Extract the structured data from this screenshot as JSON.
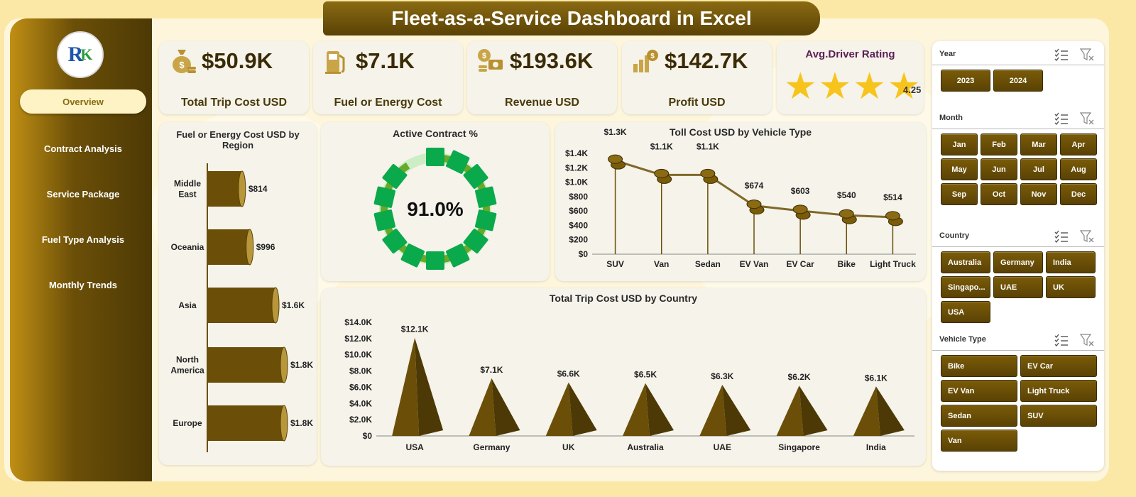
{
  "title": "Fleet-as-a-Service Dashboard in Excel",
  "logo": {
    "letter": "R",
    "accent": "K"
  },
  "nav": [
    "Overview",
    "Contract Analysis",
    "Service Package",
    "Fuel  Type Analysis",
    "Monthly Trends"
  ],
  "kpis": [
    {
      "value": "$50.9K",
      "label": "Total Trip Cost USD",
      "icon": "money-bag-icon"
    },
    {
      "value": "$7.1K",
      "label": "Fuel or Energy Cost",
      "icon": "fuel-pump-icon"
    },
    {
      "value": "$193.6K",
      "label": "Revenue USD",
      "icon": "revenue-icon"
    },
    {
      "value": "$142.7K",
      "label": "Profit USD",
      "icon": "profit-icon"
    }
  ],
  "rating": {
    "title": "Avg.Driver Rating",
    "value": "4.25",
    "stars": 4.25,
    "max": 5,
    "color": "#f7c41c"
  },
  "colors": {
    "accent": "#6b4f08",
    "gold": "#c08f14",
    "green": "#0aa94b",
    "light_green": "#cbeec4"
  },
  "chart_data": [
    {
      "type": "bar",
      "title": "Fuel or Energy Cost USD by Region",
      "orientation": "horizontal",
      "categories": [
        "Middle East",
        "Oceania",
        "Asia",
        "North America",
        "Europe"
      ],
      "values": [
        814,
        996,
        1600,
        1800,
        1800
      ],
      "labels": [
        "$814",
        "$996",
        "$1.6K",
        "$1.8K",
        "$1.8K"
      ]
    },
    {
      "type": "pie",
      "title": "Active Contract %",
      "values": [
        91.0,
        9.0
      ],
      "label": "91.0%"
    },
    {
      "type": "line",
      "title": "Toll Cost USD by Vehicle Type",
      "categories": [
        "SUV",
        "Van",
        "Sedan",
        "EV Van",
        "EV Car",
        "Bike",
        "Light Truck"
      ],
      "values": [
        1300,
        1100,
        1100,
        674,
        603,
        540,
        514
      ],
      "labels": [
        "$1.3K",
        "$1.1K",
        "$1.1K",
        "$674",
        "$603",
        "$540",
        "$514"
      ],
      "ylim": [
        0,
        1400
      ],
      "yticks": [
        "$0",
        "$200",
        "$400",
        "$600",
        "$800",
        "$1.0K",
        "$1.2K",
        "$1.4K"
      ]
    },
    {
      "type": "bar",
      "title": "Total Trip Cost USD by Country",
      "categories": [
        "USA",
        "Germany",
        "UK",
        "Australia",
        "UAE",
        "Singapore",
        "India"
      ],
      "values": [
        12100,
        7100,
        6600,
        6500,
        6300,
        6200,
        6100
      ],
      "labels": [
        "$12.1K",
        "$7.1K",
        "$6.6K",
        "$6.5K",
        "$6.3K",
        "$6.2K",
        "$6.1K"
      ],
      "ylim": [
        0,
        14000
      ],
      "yticks": [
        "$0",
        "$2.0K",
        "$4.0K",
        "$6.0K",
        "$8.0K",
        "$10.0K",
        "$12.0K",
        "$14.0K"
      ]
    }
  ],
  "slicers": {
    "year": {
      "title": "Year",
      "items": [
        "2023",
        "2024"
      ]
    },
    "month": {
      "title": "Month",
      "items": [
        "Jan",
        "Feb",
        "Mar",
        "Apr",
        "May",
        "Jun",
        "Jul",
        "Aug",
        "Sep",
        "Oct",
        "Nov",
        "Dec"
      ]
    },
    "country": {
      "title": "Country",
      "items": [
        "Australia",
        "Germany",
        "India",
        "Singapo...",
        "UAE",
        "UK",
        "USA"
      ]
    },
    "vehicle": {
      "title": "Vehicle Type",
      "items": [
        "Bike",
        "EV Car",
        "EV Van",
        "Light Truck",
        "Sedan",
        "SUV",
        "Van"
      ]
    }
  }
}
